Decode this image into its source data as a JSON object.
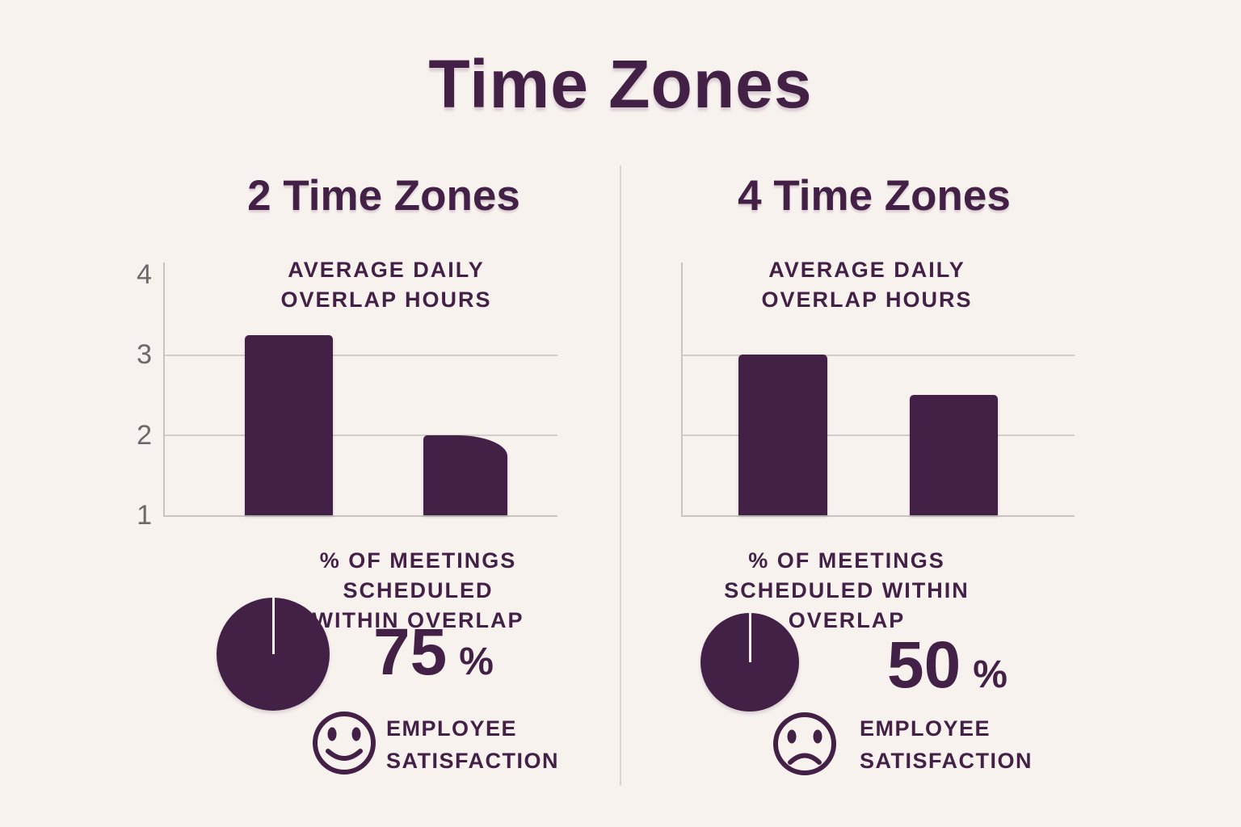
{
  "page": {
    "title": "Time Zones",
    "colors": {
      "background": "#f8f2ef",
      "accent_purple": "#432146",
      "gridline_gray": "#d2cdcb",
      "tick_gray": "#6d686a",
      "divider_gray": "#d7d3d1"
    }
  },
  "columns": [
    {
      "heading": "2 Time Zones",
      "chart_title_lines": [
        "AVERAGE DAILY",
        "OVERLAP HOURS"
      ],
      "pie_title_lines": [
        "% OF MEETINGS SCHEDULED",
        "WITHIN OVERLAP"
      ],
      "percent": "75",
      "percent_sign": "%",
      "satisfaction_lines": [
        "EMPLOYEE",
        "SATISFACTION"
      ],
      "satisfaction_mood": "happy"
    },
    {
      "heading": "4 Time Zones",
      "chart_title_lines": [
        "AVERAGE DAILY",
        "OVERLAP HOURS"
      ],
      "pie_title_lines": [
        "% OF MEETINGS",
        "SCHEDULED WITHIN",
        "OVERLAP"
      ],
      "percent": "50",
      "percent_sign": "%",
      "satisfaction_lines": [
        "EMPLOYEE",
        "SATISFACTION"
      ],
      "satisfaction_mood": "sad"
    }
  ],
  "chart_data": [
    {
      "type": "bar",
      "group": "2 Time Zones",
      "title": "AVERAGE DAILY OVERLAP HOURS",
      "values": [
        3.25,
        2
      ],
      "ylim": [
        1,
        4
      ],
      "yticks": [
        "4",
        "3",
        "2",
        "1"
      ],
      "grid": true,
      "legend": "none"
    },
    {
      "type": "pie",
      "group": "2 Time Zones",
      "title": "% OF MEETINGS SCHEDULED WITHIN OVERLAP",
      "percent": 75,
      "label_display": "75 %",
      "appearance": "solid circle with thin notch at 12 o'clock"
    },
    {
      "type": "bar",
      "group": "4 Time Zones",
      "title": "AVERAGE DAILY OVERLAP HOURS",
      "values": [
        3,
        2.5
      ],
      "ylim": [
        1,
        4
      ],
      "yticks": [],
      "grid": true,
      "legend": "none"
    },
    {
      "type": "pie",
      "group": "4 Time Zones",
      "title": "% OF MEETINGS SCHEDULED WITHIN OVERLAP",
      "percent": 50,
      "label_display": "50 %",
      "appearance": "solid circle with thin notch at 12 o'clock"
    }
  ]
}
